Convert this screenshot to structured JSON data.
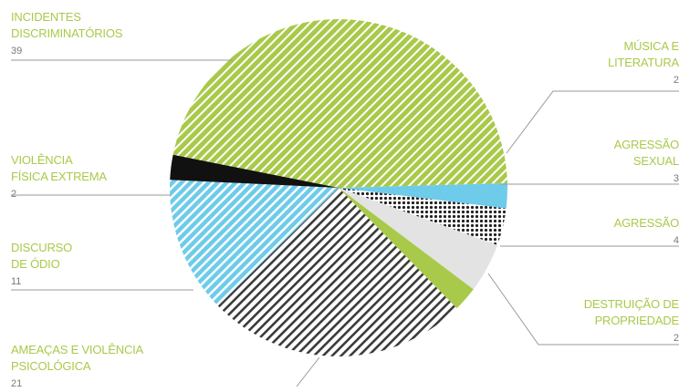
{
  "colors": {
    "green": "#a9c94a",
    "blue": "#6ecbea",
    "black": "#111111",
    "light_gray": "#e3e3e3",
    "dark_hatch": "#3a3a3a",
    "label_green": "#a9c94a",
    "value_gray": "#7a7a7a",
    "leader_gray": "#9a9a9a"
  },
  "chart_data": {
    "type": "pie",
    "slices": [
      {
        "label": "INCIDENTES DISCRIMINATÓRIOS",
        "lines": [
          "INCIDENTES",
          "DISCRIMINATÓRIOS"
        ],
        "value": 39,
        "value_text": "39",
        "fill": "green-hatch"
      },
      {
        "label": "MÚSICA E LITERATURA",
        "lines": [
          "MÚSICA E",
          "LITERATURA"
        ],
        "value": 2,
        "value_text": "2",
        "fill": "blue-solid"
      },
      {
        "label": "AGRESSÃO SEXUAL",
        "lines": [
          "AGRESSÃO",
          "SEXUAL"
        ],
        "value": 3,
        "value_text": "3",
        "fill": "dots"
      },
      {
        "label": "AGRESSÃO",
        "lines": [
          "AGRESSÃO"
        ],
        "value": 4,
        "value_text": "4",
        "fill": "gray-solid"
      },
      {
        "label": "DESTRUIÇÃO DE PROPRIEDADE",
        "lines": [
          "DESTRUIÇÃO DE",
          "PROPRIEDADE"
        ],
        "value": 2,
        "value_text": "2",
        "fill": "green-solid"
      },
      {
        "label": "AMEAÇAS E VIOLÊNCIA PSICOLÓGICA",
        "lines": [
          "AMEAÇAS E VIOLÊNCIA",
          "PSICOLÓGICA"
        ],
        "value": 21,
        "value_text": "21",
        "fill": "dark-hatch"
      },
      {
        "label": "DISCURSO DE ÓDIO",
        "lines": [
          "DISCURSO",
          "DE ÓDIO"
        ],
        "value": 11,
        "value_text": "11",
        "fill": "blue-hatch"
      },
      {
        "label": "VIOLÊNCIA FÍSICA EXTREMA",
        "lines": [
          "VIOLÊNCIA",
          "FÍSICA EXTREMA"
        ],
        "value": 2,
        "value_text": "2",
        "fill": "black-solid"
      }
    ],
    "legend": "none",
    "grid": false
  }
}
